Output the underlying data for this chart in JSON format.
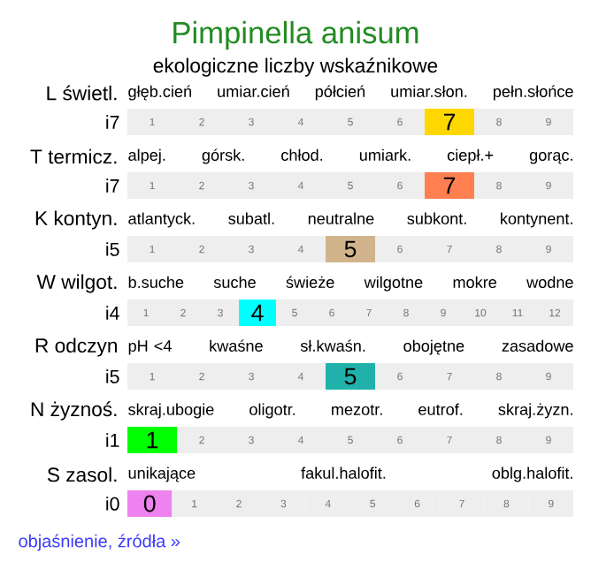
{
  "chart_data": [
    {
      "type": "heatmap",
      "data_labels": true,
      "title": "Pimpinella anisum",
      "subtitle": "ekologiczne liczby wskaźnikowe",
      "ylabel": "L świetl.",
      "annotations": [
        "głęb.cień",
        "umiar.cień",
        "półcień",
        "umiar.słon.",
        "pełn.słońce"
      ],
      "y_categories": [
        "i7"
      ],
      "categories": [
        "1",
        "2",
        "3",
        "4",
        "5",
        "6",
        null,
        "8",
        "9"
      ],
      "cells": [
        [
          null,
          null,
          null,
          null,
          null,
          null,
          7,
          null,
          null
        ]
      ],
      "color": "#ffd700"
    },
    {
      "type": "heatmap",
      "data_labels": true,
      "ylabel": "T termicz.",
      "annotations": [
        "alpej.",
        "górsk.",
        "chłod.",
        "umiark.",
        "ciepł.+",
        "gorąc."
      ],
      "y_categories": [
        "i7"
      ],
      "categories": [
        "1",
        "2",
        "3",
        "4",
        "5",
        "6",
        null,
        "8",
        "9"
      ],
      "cells": [
        [
          null,
          null,
          null,
          null,
          null,
          null,
          7,
          null,
          null
        ]
      ],
      "color": "#ff7f50"
    },
    {
      "type": "heatmap",
      "data_labels": true,
      "ylabel": "K kontyn.",
      "annotations": [
        "atlantyck.",
        "subatl.",
        "neutralne",
        "subkont.",
        "kontynent."
      ],
      "y_categories": [
        "i5"
      ],
      "categories": [
        "1",
        "2",
        "3",
        "4",
        null,
        "6",
        "7",
        "8",
        "9"
      ],
      "cells": [
        [
          null,
          null,
          null,
          null,
          5,
          null,
          null,
          null,
          null
        ]
      ],
      "color": "#d2b48c"
    },
    {
      "type": "heatmap",
      "data_labels": true,
      "ylabel": "W wilgot.",
      "annotations": [
        "b.suche",
        "suche",
        "świeże",
        "wilgotne",
        "mokre",
        "wodne"
      ],
      "y_categories": [
        "i4"
      ],
      "categories": [
        "1",
        "2",
        "3",
        null,
        "5",
        "6",
        "7",
        "8",
        "9",
        "10",
        "11",
        "12"
      ],
      "cells": [
        [
          null,
          null,
          null,
          4,
          null,
          null,
          null,
          null,
          null,
          null,
          null,
          null
        ]
      ],
      "color": "#00ffff"
    },
    {
      "type": "heatmap",
      "data_labels": true,
      "ylabel": "R odczyn",
      "annotations": [
        "pH <4",
        "kwaśne",
        "sł.kwaśn.",
        "obojętne",
        "zasadowe"
      ],
      "y_categories": [
        "i5"
      ],
      "categories": [
        "1",
        "2",
        "3",
        "4",
        null,
        "6",
        "7",
        "8",
        "9"
      ],
      "cells": [
        [
          null,
          null,
          null,
          null,
          5,
          null,
          null,
          null,
          null
        ]
      ],
      "color": "#20b2aa"
    },
    {
      "type": "heatmap",
      "data_labels": true,
      "ylabel": "N żyznoś.",
      "annotations": [
        "skraj.ubogie",
        "oligotr.",
        "mezotr.",
        "eutrof.",
        "skraj.żyzn."
      ],
      "y_categories": [
        "i1"
      ],
      "categories": [
        null,
        "2",
        "3",
        "4",
        "5",
        "6",
        "7",
        "8",
        "9"
      ],
      "cells": [
        [
          1,
          null,
          null,
          null,
          null,
          null,
          null,
          null,
          null
        ]
      ],
      "color": "#00ff00"
    },
    {
      "type": "heatmap",
      "data_labels": true,
      "ylabel": "S zasol.",
      "annotations": [
        "unikające",
        "fakul.halofit.",
        "oblg.halofit."
      ],
      "y_categories": [
        "i0"
      ],
      "categories": [
        null,
        "1",
        "2",
        "3",
        "4",
        "5",
        "6",
        "7",
        "8",
        "9"
      ],
      "cells": [
        [
          0,
          null,
          null,
          null,
          null,
          null,
          null,
          null,
          null,
          null
        ]
      ],
      "color": "#ee82ee"
    },
    {
      "type": "other",
      "annotations": [
        "objaśnienie, źródła »"
      ],
      "color": "#3a3aff"
    }
  ]
}
